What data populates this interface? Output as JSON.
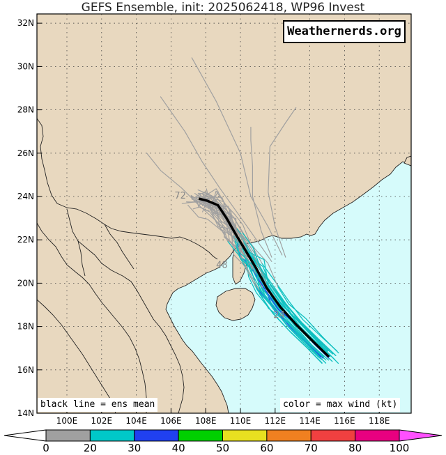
{
  "title": "GEFS Ensemble, init: 2025062418, WP96 Invest",
  "brand": "Weathernerds.org",
  "legend_left": "black line = ens mean",
  "legend_right": "color = max wind (kt)",
  "lat_labels": [
    "32N",
    "30N",
    "28N",
    "26N",
    "24N",
    "22N",
    "20N",
    "18N",
    "16N",
    "14N"
  ],
  "lon_labels": [
    "100E",
    "102E",
    "104E",
    "106E",
    "108E",
    "110E",
    "112E",
    "114E",
    "116E",
    "118E"
  ],
  "hour_labels": [
    "72",
    "48",
    "24"
  ],
  "colorbar": {
    "ticks": [
      "0",
      "20",
      "30",
      "40",
      "50",
      "60",
      "70",
      "80",
      "100"
    ],
    "colors": [
      "#a0a0a0",
      "#00c8c8",
      "#2040f0",
      "#00d000",
      "#e8e020",
      "#f08020",
      "#f04040",
      "#e80080"
    ],
    "tip_color": "#ff50ff"
  },
  "colors": {
    "land": "#e8d8bf",
    "ocean": "#d6fbfb",
    "ens_member_weak": "#a0a0a0",
    "ens_member_ts": "#10c0c0",
    "ens_member_strong": "#2040f0",
    "ens_mean": "#000000"
  },
  "chart_data": {
    "type": "map",
    "region": {
      "lon_range": [
        98.5,
        119.7
      ],
      "lat_range": [
        14,
        32.5
      ]
    },
    "ens_mean_track": [
      {
        "lon": 115.1,
        "lat": 16.6
      },
      {
        "lon": 114.2,
        "lat": 17.3
      },
      {
        "lon": 113.2,
        "lat": 18.1
      },
      {
        "lon": 112.3,
        "lat": 18.9
      },
      {
        "lon": 111.5,
        "lat": 19.8
      },
      {
        "lon": 110.9,
        "lat": 20.7
      },
      {
        "lon": 110.3,
        "lat": 21.5
      },
      {
        "lon": 109.7,
        "lat": 22.3
      },
      {
        "lon": 109.2,
        "lat": 23.0
      },
      {
        "lon": 108.7,
        "lat": 23.6
      },
      {
        "lon": 108.1,
        "lat": 23.8
      },
      {
        "lon": 107.6,
        "lat": 23.9
      }
    ],
    "hour_label_positions": [
      {
        "label": "72",
        "lon": 106.2,
        "lat": 23.9
      },
      {
        "label": "48",
        "lon": 108.6,
        "lat": 20.7
      },
      {
        "label": "24",
        "lon": 111.9,
        "lat": 18.4
      }
    ]
  }
}
